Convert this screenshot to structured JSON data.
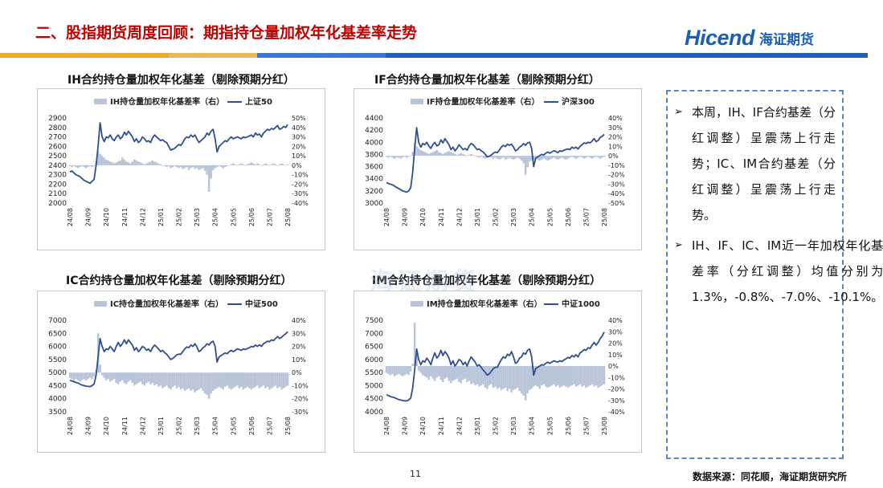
{
  "page_title": "二、股指期货周度回顾：期指持仓量加权年化基差率走势",
  "logo": {
    "en": "Hicend",
    "cn": "海证期货"
  },
  "watermark": "海证期货",
  "colors": {
    "bar": "#b8c4d8",
    "line": "#2f4f8f",
    "title_red": "#c00000",
    "brand_blue": "#1a5fb4"
  },
  "page_number": "11",
  "source": "数据来源：同花顺，海证期货研究所",
  "bullets": [
    "本周，IH、IF合约基差（分红调整）呈震荡上行走势；IC、IM合约基差（分红调整）呈震荡上行走势。",
    "IH、IF、IC、IM近一年加权年化基差率（分红调整）均值分别为1.3%，-0.8%、-7.0%、-10.1%。"
  ],
  "chart_data": [
    {
      "type": "line",
      "title": "IH合约持仓量加权年化基差（剔除预期分红）",
      "legend": {
        "bar": "IH持仓量加权年化基差率（右）",
        "line": "上证50"
      },
      "x_ticks": [
        "24/08",
        "24/09",
        "24/10",
        "24/11",
        "24/12",
        "25/01",
        "25/02",
        "25/03",
        "25/04",
        "25/05",
        "25/06",
        "25/07",
        "25/08"
      ],
      "y_left_ticks": [
        "2900",
        "2800",
        "2700",
        "2600",
        "2500",
        "2400",
        "2300",
        "2200",
        "2100",
        "2000"
      ],
      "y_right_ticks": [
        "50%",
        "40%",
        "30%",
        "20%",
        "10%",
        "0%",
        "-10%",
        "-20%",
        "-30%",
        "-40%"
      ],
      "ylim_left": [
        2000,
        2900
      ],
      "ylim_right": [
        -40,
        50
      ],
      "series": [
        {
          "name": "上证50",
          "axis": "left",
          "values": [
            2330,
            2340,
            2320,
            2300,
            2290,
            2280,
            2260,
            2240,
            2230,
            2220,
            2210,
            2230,
            2250,
            2400,
            2600,
            2850,
            2700,
            2650,
            2700,
            2690,
            2720,
            2680,
            2660,
            2700,
            2720,
            2680,
            2700,
            2750,
            2720,
            2760,
            2730,
            2700,
            2650,
            2680,
            2640,
            2660,
            2700,
            2680,
            2650,
            2660,
            2640,
            2690,
            2720,
            2700,
            2680,
            2660,
            2670,
            2650,
            2640,
            2600,
            2560,
            2570,
            2580,
            2600,
            2620,
            2610,
            2640,
            2680,
            2700,
            2690,
            2720,
            2700,
            2720,
            2680,
            2640,
            2660,
            2680,
            2700,
            2740,
            2720,
            2760,
            2780,
            2680,
            2540,
            2600,
            2620,
            2640,
            2660,
            2650,
            2680,
            2700,
            2680,
            2690,
            2700,
            2690,
            2680,
            2700,
            2690,
            2700,
            2710,
            2720,
            2700,
            2740,
            2720,
            2730,
            2700,
            2740,
            2760,
            2780,
            2770,
            2790,
            2780,
            2800,
            2820,
            2780,
            2790,
            2810,
            2800,
            2830
          ]
        },
        {
          "name": "IH持仓量加权年化基差率",
          "axis": "right",
          "values": [
            -1,
            -2,
            -1,
            -2,
            -3,
            -2,
            -1,
            -2,
            -3,
            -2,
            -1,
            -2,
            -1,
            4,
            15,
            12,
            10,
            8,
            6,
            5,
            4,
            3,
            2,
            3,
            4,
            5,
            8,
            6,
            4,
            3,
            2,
            4,
            6,
            5,
            4,
            3,
            2,
            1,
            2,
            3,
            4,
            5,
            4,
            3,
            2,
            1,
            0,
            -1,
            -2,
            -1,
            -3,
            -2,
            -1,
            -2,
            -3,
            -2,
            -4,
            -3,
            -2,
            -5,
            -3,
            -2,
            -4,
            -3,
            -5,
            -4,
            -3,
            -6,
            -10,
            -28,
            -14,
            -5,
            -3,
            -2,
            -1,
            -2,
            -3,
            -2,
            -1,
            0,
            1,
            2,
            1,
            0,
            1,
            2,
            1,
            0,
            1,
            2,
            3,
            2,
            1,
            2,
            1,
            0,
            1,
            2,
            1,
            0,
            1,
            2,
            1,
            0,
            1,
            2,
            1,
            0,
            1
          ]
        }
      ]
    },
    {
      "type": "line",
      "title": "IF合约持仓量加权年化基差（剔除预期分红）",
      "legend": {
        "bar": "IF持仓量加权年化基差率（右）",
        "line": "沪深300"
      },
      "x_ticks": [
        "24/08",
        "24/09",
        "24/10",
        "24/11",
        "24/12",
        "25/01",
        "25/02",
        "25/03",
        "25/04",
        "25/05",
        "25/06",
        "25/07",
        "25/08"
      ],
      "y_left_ticks": [
        "4400",
        "4200",
        "4000",
        "3800",
        "3600",
        "3400",
        "3200",
        "3000"
      ],
      "y_right_ticks": [
        "40%",
        "30%",
        "20%",
        "10%",
        "0%",
        "-10%",
        "-20%",
        "-30%",
        "-40%",
        "-50%"
      ],
      "ylim_left": [
        3000,
        4400
      ],
      "ylim_right": [
        -50,
        40
      ],
      "series": [
        {
          "name": "沪深300",
          "axis": "left",
          "values": [
            3340,
            3320,
            3310,
            3300,
            3280,
            3260,
            3240,
            3220,
            3200,
            3190,
            3180,
            3200,
            3250,
            3500,
            3900,
            4240,
            4000,
            3920,
            3980,
            3960,
            4000,
            3940,
            3900,
            3960,
            4000,
            3940,
            3960,
            4040,
            3990,
            4060,
            4010,
            3960,
            3880,
            3920,
            3860,
            3900,
            3960,
            3920,
            3880,
            3900,
            3870,
            3940,
            3980,
            3960,
            3920,
            3880,
            3890,
            3860,
            3840,
            3800,
            3760,
            3770,
            3790,
            3820,
            3840,
            3830,
            3870,
            3920,
            3950,
            3930,
            3970,
            3950,
            3970,
            3920,
            3860,
            3880,
            3920,
            3940,
            3980,
            3950,
            3990,
            4000,
            3900,
            3600,
            3740,
            3760,
            3780,
            3800,
            3790,
            3820,
            3840,
            3820,
            3840,
            3860,
            3850,
            3830,
            3860,
            3850,
            3870,
            3880,
            3890,
            3880,
            3920,
            3900,
            3920,
            3890,
            3930,
            3960,
            3990,
            3980,
            4000,
            3990,
            4020,
            4060,
            4010,
            4030,
            4080,
            4100,
            4130
          ]
        },
        {
          "name": "IF持仓量加权年化基差率",
          "axis": "right",
          "values": [
            -1,
            -2,
            -1,
            -2,
            -3,
            -2,
            -2,
            -3,
            -2,
            -1,
            -2,
            -1,
            0,
            4,
            14,
            10,
            8,
            6,
            5,
            4,
            3,
            2,
            3,
            4,
            5,
            6,
            4,
            3,
            2,
            3,
            4,
            5,
            4,
            3,
            2,
            1,
            2,
            3,
            2,
            1,
            0,
            1,
            2,
            1,
            0,
            -1,
            -2,
            -1,
            -2,
            -3,
            -2,
            -1,
            -2,
            -3,
            -2,
            -3,
            -4,
            -3,
            -2,
            -4,
            -3,
            -2,
            -3,
            -4,
            -3,
            -2,
            -3,
            -5,
            -8,
            -20,
            -12,
            -6,
            -5,
            -4,
            -3,
            -4,
            -5,
            -4,
            -3,
            -4,
            -5,
            -4,
            -3,
            -2,
            -3,
            -4,
            -3,
            -2,
            -3,
            -4,
            -3,
            -2,
            -1,
            -2,
            -3,
            -2,
            -1,
            -2,
            -3,
            -2,
            -1,
            -2,
            -3,
            -2,
            -1,
            -2,
            -3,
            -2,
            -1
          ]
        }
      ]
    },
    {
      "type": "line",
      "title": "IC合约持仓量加权年化基差（剔除预期分红）",
      "legend": {
        "bar": "IC持仓量加权年化基差率（右）",
        "line": "中证500"
      },
      "x_ticks": [
        "24/08",
        "24/09",
        "24/10",
        "24/11",
        "24/12",
        "25/01",
        "25/02",
        "25/03",
        "25/04",
        "25/05",
        "25/06",
        "25/07",
        "25/08"
      ],
      "y_left_ticks": [
        "7000",
        "6500",
        "6000",
        "5500",
        "5000",
        "4500",
        "4000",
        "3500"
      ],
      "y_right_ticks": [
        "40%",
        "30%",
        "20%",
        "10%",
        "0%",
        "-10%",
        "-20%",
        "-30%"
      ],
      "ylim_left": [
        3500,
        7000
      ],
      "ylim_right": [
        -30,
        40
      ],
      "series": [
        {
          "name": "中证500",
          "axis": "left",
          "values": [
            4700,
            4680,
            4650,
            4620,
            4600,
            4560,
            4520,
            4500,
            4480,
            4470,
            4460,
            4500,
            4560,
            4900,
            5600,
            6300,
            6000,
            5800,
            5900,
            5880,
            6000,
            5900,
            5800,
            6000,
            6150,
            6000,
            6100,
            6250,
            6100,
            6250,
            6150,
            6050,
            5850,
            5950,
            5800,
            5880,
            6000,
            5950,
            5850,
            5900,
            5800,
            5950,
            6050,
            5980,
            5900,
            5800,
            5850,
            5760,
            5700,
            5600,
            5500,
            5540,
            5600,
            5680,
            5700,
            5700,
            5800,
            5900,
            5980,
            5950,
            6050,
            6000,
            6100,
            5980,
            5800,
            5850,
            5950,
            6000,
            6100,
            6050,
            6150,
            6200,
            6000,
            5400,
            5600,
            5650,
            5700,
            5750,
            5720,
            5800,
            5850,
            5800,
            5850,
            5900,
            5880,
            5850,
            5900,
            5880,
            5920,
            5950,
            6000,
            5980,
            6050,
            6000,
            6060,
            6000,
            6100,
            6150,
            6200,
            6180,
            6250,
            6220,
            6300,
            6380,
            6300,
            6350,
            6420,
            6480,
            6560
          ]
        },
        {
          "name": "IC持仓量加权年化基差率",
          "axis": "right",
          "values": [
            -4,
            -5,
            -6,
            -5,
            -6,
            -7,
            -6,
            -5,
            -6,
            -5,
            -4,
            -5,
            -3,
            2,
            30,
            6,
            -2,
            -4,
            -6,
            -5,
            -7,
            -6,
            -5,
            -8,
            -9,
            -7,
            -6,
            -8,
            -9,
            -7,
            -6,
            -8,
            -10,
            -9,
            -8,
            -7,
            -9,
            -10,
            -8,
            -7,
            -9,
            -8,
            -10,
            -9,
            -11,
            -10,
            -12,
            -11,
            -10,
            -12,
            -13,
            -11,
            -10,
            -12,
            -11,
            -13,
            -12,
            -14,
            -13,
            -12,
            -14,
            -13,
            -15,
            -14,
            -13,
            -12,
            -14,
            -16,
            -17,
            -20,
            -16,
            -14,
            -13,
            -12,
            -11,
            -12,
            -13,
            -11,
            -10,
            -12,
            -13,
            -12,
            -11,
            -10,
            -12,
            -11,
            -13,
            -12,
            -11,
            -12,
            -13,
            -12,
            -11,
            -10,
            -12,
            -11,
            -10,
            -12,
            -11,
            -13,
            -12,
            -11,
            -10,
            -12,
            -11,
            -13,
            -12,
            -11,
            -10
          ]
        }
      ]
    },
    {
      "type": "line",
      "title": "IM合约持仓量加权年化基差（剔除预期分红）",
      "legend": {
        "bar": "IM持仓量加权年化基差率（右）",
        "line": "中证1000"
      },
      "x_ticks": [
        "24/08",
        "24/09",
        "24/10",
        "24/11",
        "24/12",
        "25/01",
        "25/02",
        "25/03",
        "25/04",
        "25/05",
        "25/06",
        "25/07",
        "25/08"
      ],
      "y_left_ticks": [
        "7500",
        "7000",
        "6500",
        "6000",
        "5500",
        "5000",
        "4500",
        "4000"
      ],
      "y_right_ticks": [
        "40%",
        "30%",
        "20%",
        "10%",
        "0%",
        "-10%",
        "-20%",
        "-30%",
        "-40%"
      ],
      "ylim_left": [
        4000,
        7500
      ],
      "ylim_right": [
        -40,
        40
      ],
      "series": [
        {
          "name": "中证1000",
          "axis": "left",
          "values": [
            4650,
            4620,
            4580,
            4560,
            4540,
            4500,
            4470,
            4450,
            4430,
            4420,
            4410,
            4450,
            4520,
            4900,
            5600,
            6400,
            6000,
            5800,
            5950,
            5900,
            6050,
            5950,
            5800,
            6050,
            6250,
            6050,
            6150,
            6350,
            6150,
            6300,
            6200,
            6050,
            5800,
            5950,
            5750,
            5850,
            6000,
            5950,
            5800,
            5900,
            5750,
            5950,
            6100,
            6000,
            5900,
            5750,
            5800,
            5700,
            5600,
            5500,
            5400,
            5450,
            5550,
            5650,
            5700,
            5700,
            5850,
            6000,
            6100,
            6050,
            6200,
            6150,
            6300,
            6100,
            5850,
            5900,
            6050,
            6100,
            6250,
            6200,
            6350,
            6400,
            6100,
            5400,
            5650,
            5700,
            5750,
            5800,
            5780,
            5850,
            5900,
            5850,
            5900,
            5950,
            5920,
            5900,
            5950,
            5920,
            5980,
            6020,
            6080,
            6050,
            6150,
            6100,
            6180,
            6100,
            6250,
            6300,
            6380,
            6350,
            6450,
            6420,
            6550,
            6650,
            6550,
            6650,
            6800,
            6900,
            7050
          ]
        },
        {
          "name": "IM持仓量加权年化基差率",
          "axis": "right",
          "values": [
            -6,
            -7,
            -8,
            -7,
            -9,
            -8,
            -7,
            -8,
            -9,
            -8,
            -7,
            -8,
            -5,
            2,
            38,
            10,
            -4,
            -6,
            -8,
            -9,
            -10,
            -12,
            -9,
            -11,
            -13,
            -10,
            -9,
            -12,
            -14,
            -11,
            -10,
            -13,
            -15,
            -13,
            -12,
            -11,
            -14,
            -15,
            -12,
            -11,
            -14,
            -13,
            -16,
            -15,
            -17,
            -16,
            -18,
            -17,
            -16,
            -19,
            -20,
            -17,
            -16,
            -19,
            -18,
            -20,
            -19,
            -21,
            -20,
            -19,
            -22,
            -20,
            -23,
            -21,
            -20,
            -19,
            -22,
            -24,
            -26,
            -30,
            -24,
            -21,
            -20,
            -18,
            -17,
            -18,
            -20,
            -17,
            -16,
            -18,
            -19,
            -18,
            -17,
            -16,
            -18,
            -17,
            -19,
            -18,
            -17,
            -18,
            -19,
            -18,
            -17,
            -16,
            -18,
            -17,
            -16,
            -18,
            -17,
            -19,
            -18,
            -17,
            -16,
            -18,
            -17,
            -19,
            -18,
            -17,
            -16
          ]
        }
      ]
    }
  ]
}
